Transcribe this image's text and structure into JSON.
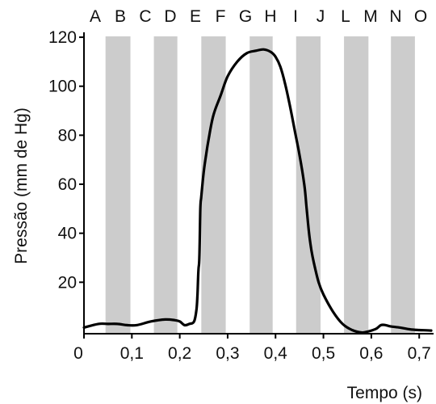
{
  "chart_data": {
    "type": "line",
    "title": "",
    "xlabel": "Tempo (s)",
    "ylabel": "Pressão (mm de Hg)",
    "xlim": [
      0,
      0.73
    ],
    "ylim": [
      -1,
      122
    ],
    "x_ticks": [
      0,
      0.1,
      0.2,
      0.3,
      0.4,
      0.5,
      0.6,
      0.7
    ],
    "x_tick_labels": [
      "0",
      "0,1",
      "0,2",
      "0,3",
      "0,4",
      "0,5",
      "0,6",
      "0,7"
    ],
    "y_ticks": [
      20,
      40,
      60,
      80,
      100,
      120
    ],
    "y_tick_labels": [
      "20",
      "40",
      "60",
      "80",
      "100",
      "120"
    ],
    "phase_labels": [
      "A",
      "B",
      "C",
      "D",
      "E",
      "F",
      "G",
      "H",
      "I",
      "J",
      "L",
      "M",
      "N",
      "O"
    ],
    "shaded_bands": [
      [
        0.045,
        0.097
      ],
      [
        0.146,
        0.195
      ],
      [
        0.245,
        0.296
      ],
      [
        0.346,
        0.394
      ],
      [
        0.443,
        0.494
      ],
      [
        0.543,
        0.594
      ],
      [
        0.641,
        0.691
      ]
    ],
    "band_color": "#cccccc",
    "line_color": "#000000",
    "grid": false,
    "series": [
      {
        "x": [
          0.0,
          0.03,
          0.05,
          0.07,
          0.09,
          0.11,
          0.14,
          0.17,
          0.19,
          0.2,
          0.21,
          0.22,
          0.23,
          0.235,
          0.237,
          0.239,
          0.241,
          0.243,
          0.245,
          0.25,
          0.255,
          0.26,
          0.27,
          0.285,
          0.3,
          0.32,
          0.34,
          0.36,
          0.375,
          0.39,
          0.4,
          0.41,
          0.42,
          0.43,
          0.44,
          0.45,
          0.46,
          0.465,
          0.47,
          0.475,
          0.48,
          0.49,
          0.5,
          0.52,
          0.54,
          0.56,
          0.58,
          0.595,
          0.61,
          0.62,
          0.63,
          0.64,
          0.66,
          0.68,
          0.7,
          0.725
        ],
        "y": [
          1.5,
          3,
          3,
          3,
          2.5,
          2.5,
          4,
          4.8,
          4.5,
          4,
          2.5,
          3,
          4,
          9,
          15,
          25,
          30,
          50,
          55,
          65,
          72,
          78,
          88,
          96,
          104,
          110,
          113.5,
          114.5,
          115,
          114,
          112,
          108,
          101,
          92,
          82,
          72,
          60,
          50,
          40,
          33,
          28,
          20,
          15,
          8,
          3,
          0.5,
          -0.5,
          0,
          1,
          2.5,
          2.5,
          2,
          1.5,
          0.8,
          0.5,
          0.3
        ]
      }
    ]
  }
}
